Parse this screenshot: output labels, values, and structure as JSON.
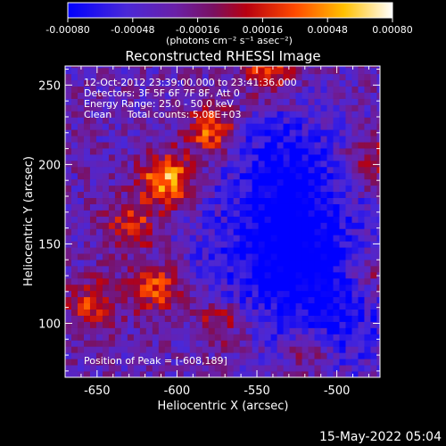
{
  "colorbar": {
    "tick_labels": [
      "-0.00080",
      "-0.00048",
      "-0.00016",
      "0.00016",
      "0.00048",
      "0.00080"
    ],
    "tick_values": [
      -0.0008,
      -0.00048,
      -0.00016,
      0.00016,
      0.00048,
      0.0008
    ],
    "range": [
      -0.0008,
      0.0008
    ],
    "unit_label": "(photons cm⁻² s⁻¹ asec⁻²)",
    "colors": [
      "#0000ff",
      "#5a2bc8",
      "#7a1a7a",
      "#b0000a",
      "#ff5a00",
      "#ffd200",
      "#ffffff"
    ]
  },
  "chart_data": {
    "type": "heatmap",
    "title": "Reconstructed RHESSI Image",
    "xlabel": "Heliocentric X (arcsec)",
    "ylabel": "Heliocentric Y (arcsec)",
    "xlim": [
      -670,
      -473
    ],
    "ylim": [
      66,
      262
    ],
    "x_ticks": [
      -650,
      -600,
      -550,
      -500
    ],
    "y_ticks": [
      100,
      150,
      200,
      250
    ],
    "x_tick_labels": [
      "-650",
      "-600",
      "-550",
      "-500"
    ],
    "y_tick_labels": [
      "100",
      "150",
      "200",
      "250"
    ],
    "annotations": [
      "12-Oct-2012 23:39:00.000 to 23:41:36.000",
      "Detectors: 3F 5F 6F 7F 8F, Att 0",
      "Energy Range: 25.0 - 50.0 keV",
      "Clean     Total counts: 5.08E+03"
    ],
    "peak_label": "Position of Peak = [-608,189]",
    "peak": [
      -608,
      189
    ],
    "hot_spots": [
      {
        "x": -608,
        "y": 189,
        "value": 0.0008
      },
      {
        "x": -580,
        "y": 220,
        "value": 0.00062
      },
      {
        "x": -545,
        "y": 258,
        "value": 0.00055
      },
      {
        "x": -615,
        "y": 120,
        "value": 0.0005
      },
      {
        "x": -630,
        "y": 160,
        "value": 0.00042
      },
      {
        "x": -655,
        "y": 110,
        "value": 0.0004
      },
      {
        "x": -575,
        "y": 100,
        "value": 0.0004
      },
      {
        "x": -480,
        "y": 200,
        "value": 0.00035
      },
      {
        "x": -480,
        "y": 130,
        "value": 0.0003
      },
      {
        "x": -520,
        "y": 80,
        "value": 0.0003
      }
    ],
    "cold_spots": [
      {
        "x": -535,
        "y": 195,
        "value": -0.0008
      },
      {
        "x": -525,
        "y": 150,
        "value": -0.0007
      },
      {
        "x": -560,
        "y": 130,
        "value": -0.0006
      },
      {
        "x": -510,
        "y": 115,
        "value": -0.0006
      },
      {
        "x": -500,
        "y": 95,
        "value": -0.0005
      }
    ]
  },
  "footer": {
    "date": "15-May-2022 05:04"
  }
}
